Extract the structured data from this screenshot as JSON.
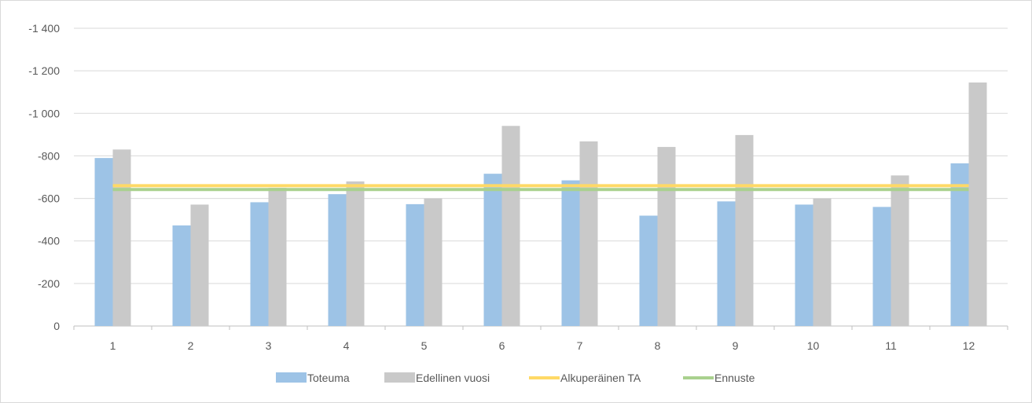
{
  "chart_data": {
    "type": "bar",
    "title": "",
    "xlabel": "",
    "ylabel": "",
    "categories": [
      "1",
      "2",
      "3",
      "4",
      "5",
      "6",
      "7",
      "8",
      "9",
      "10",
      "11",
      "12"
    ],
    "ylim": [
      0,
      -1400
    ],
    "y_ticks": [
      {
        "value": -1400,
        "label": "-1 400"
      },
      {
        "value": -1200,
        "label": "-1 200"
      },
      {
        "value": -1000,
        "label": "-1 000"
      },
      {
        "value": -800,
        "label": "-800"
      },
      {
        "value": -600,
        "label": "-600"
      },
      {
        "value": -400,
        "label": "-400"
      },
      {
        "value": -200,
        "label": "-200"
      },
      {
        "value": 0,
        "label": "0"
      }
    ],
    "grid": true,
    "legend_position": "bottom",
    "series": [
      {
        "name": "Toteuma",
        "kind": "bar",
        "color": "#9dc3e6",
        "values": [
          -790,
          -473,
          -582,
          -620,
          -573,
          -716,
          -685,
          -519,
          -586,
          -571,
          -560,
          -765
        ]
      },
      {
        "name": "Edellinen vuosi",
        "kind": "bar",
        "color": "#c9c9c9",
        "values": [
          -830,
          -571,
          -650,
          -680,
          -600,
          -941,
          -868,
          -842,
          -898,
          -600,
          -708,
          -1145
        ]
      },
      {
        "name": "Alkuperäinen TA",
        "kind": "line",
        "color": "#ffd966",
        "values": [
          -660,
          -660,
          -660,
          -660,
          -660,
          -660,
          -660,
          -660,
          -660,
          -660,
          -660,
          -660
        ]
      },
      {
        "name": "Ennuste",
        "kind": "line",
        "color": "#a9d18e",
        "values": [
          -642,
          -642,
          -642,
          -642,
          -642,
          -642,
          -642,
          -642,
          -642,
          -642,
          -642,
          -642
        ]
      }
    ]
  }
}
